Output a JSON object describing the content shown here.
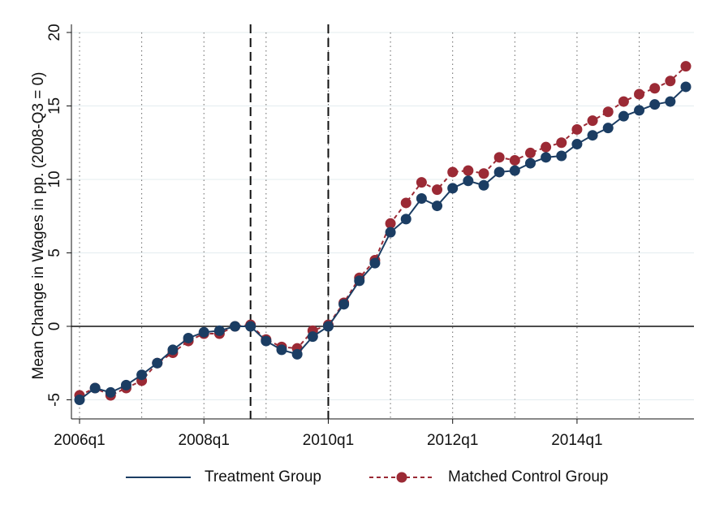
{
  "chart_data": {
    "type": "line",
    "ylabel": "Mean Change in Wages in pp. (2008-Q3 = 0)",
    "categories": [
      "2006q1",
      null,
      null,
      null,
      null,
      null,
      null,
      null,
      "2008q1",
      null,
      null,
      null,
      null,
      null,
      null,
      null,
      "2010q1",
      null,
      null,
      null,
      null,
      null,
      null,
      null,
      "2012q1",
      null,
      null,
      null,
      null,
      null,
      null,
      null,
      "2014q1",
      null,
      null,
      null,
      null,
      null,
      null,
      null
    ],
    "series": [
      {
        "name": "Treatment Group",
        "color": "#1b3d63",
        "line_style": "solid",
        "values": [
          -5.0,
          -4.2,
          -4.5,
          -4.0,
          -3.3,
          -2.5,
          -1.6,
          -0.8,
          -0.4,
          -0.3,
          0.0,
          0.0,
          -1.0,
          -1.6,
          -1.9,
          -0.7,
          0.0,
          1.5,
          3.1,
          4.3,
          6.4,
          7.3,
          8.7,
          8.2,
          9.4,
          9.9,
          9.6,
          10.5,
          10.6,
          11.1,
          11.5,
          11.6,
          12.4,
          13.0,
          13.5,
          14.3,
          14.7,
          15.1,
          15.3,
          16.3
        ]
      },
      {
        "name": "Matched Control Group",
        "color": "#9b2a35",
        "line_style": "dashed",
        "values": [
          -4.7,
          -4.2,
          -4.7,
          -4.2,
          -3.7,
          -2.5,
          -1.8,
          -1.0,
          -0.5,
          -0.5,
          0.0,
          0.1,
          -0.9,
          -1.4,
          -1.5,
          -0.3,
          0.1,
          1.6,
          3.3,
          4.5,
          7.0,
          8.4,
          9.8,
          9.3,
          10.5,
          10.6,
          10.4,
          11.5,
          11.3,
          11.8,
          12.2,
          12.5,
          13.4,
          14.0,
          14.6,
          15.3,
          15.8,
          16.2,
          16.7,
          17.7
        ]
      }
    ],
    "ylim": [
      -6.3,
      20
    ],
    "yticks": [
      -5,
      0,
      5,
      10,
      15,
      20
    ],
    "grid": true,
    "event_lines": [
      11,
      16
    ],
    "xgrid_every": 4,
    "legend": "bottom"
  }
}
